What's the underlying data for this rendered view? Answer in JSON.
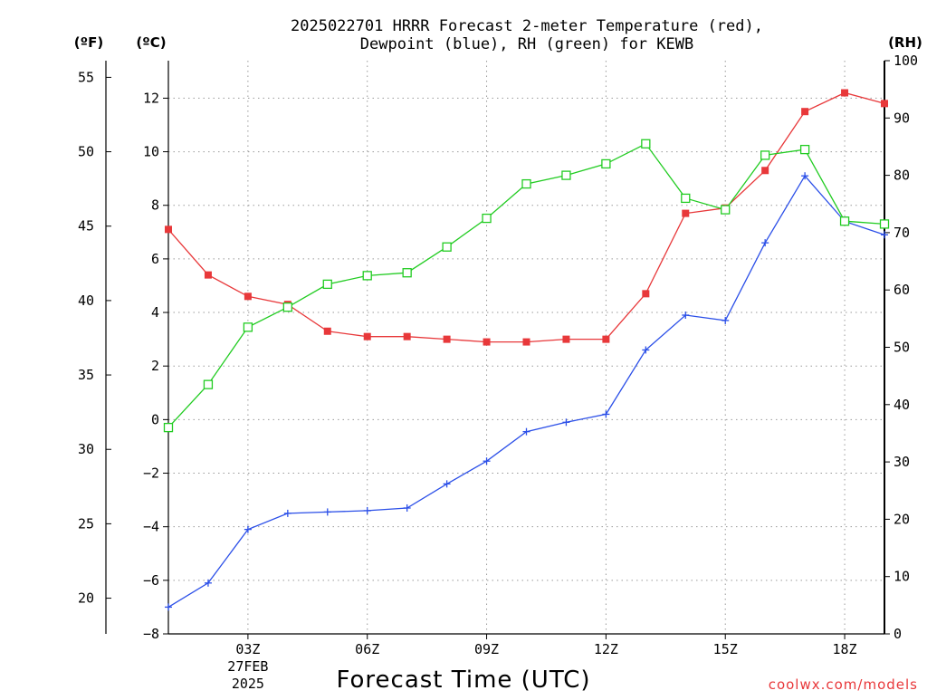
{
  "title_line1": "2025022701 HRRR Forecast 2-meter Temperature (red),",
  "title_line2": "Dewpoint (blue), RH (green) for KEWB",
  "credit": "coolwx.com/models",
  "chart_data": {
    "type": "line",
    "xlabel": "Forecast Time (UTC)",
    "x_hours": [
      1,
      2,
      3,
      4,
      5,
      6,
      7,
      8,
      9,
      10,
      11,
      12,
      13,
      14,
      15,
      16,
      17,
      18,
      19
    ],
    "x_range_hours": [
      1,
      19
    ],
    "x_ticks": [
      {
        "hour": 3,
        "label": "03Z",
        "sub1": "27FEB",
        "sub2": "2025"
      },
      {
        "hour": 6,
        "label": "06Z"
      },
      {
        "hour": 9,
        "label": "09Z"
      },
      {
        "hour": 12,
        "label": "12Z"
      },
      {
        "hour": 15,
        "label": "15Z"
      },
      {
        "hour": 18,
        "label": "18Z"
      }
    ],
    "left_axis_c": {
      "unit": "(ºC)",
      "ylim": [
        -8,
        13.4
      ],
      "ticks": [
        -8,
        -6,
        -4,
        -2,
        0,
        2,
        4,
        6,
        8,
        10,
        12
      ]
    },
    "left_axis_f": {
      "unit": "(ºF)",
      "ylim": [
        17.6,
        56.12
      ],
      "ticks": [
        20,
        25,
        30,
        35,
        40,
        45,
        50,
        55
      ]
    },
    "right_axis_rh": {
      "unit": "(RH)",
      "ylim": [
        0,
        100
      ],
      "ticks": [
        0,
        10,
        20,
        30,
        40,
        50,
        60,
        70,
        80,
        90,
        100
      ]
    },
    "grid": true,
    "series": [
      {
        "key": "temperature",
        "axis": "c",
        "color": "#e8383a",
        "marker": "filled-square",
        "values": [
          7.1,
          5.4,
          4.6,
          4.3,
          3.3,
          3.1,
          3.1,
          3.0,
          2.9,
          2.9,
          3.0,
          3.0,
          4.7,
          7.7,
          7.9,
          9.3,
          11.5,
          12.2,
          11.8
        ]
      },
      {
        "key": "dewpoint",
        "axis": "c",
        "color": "#2b4fe8",
        "marker": "plus",
        "values": [
          -7.0,
          -6.1,
          -4.1,
          -3.5,
          -3.45,
          -3.4,
          -3.3,
          -2.4,
          -1.55,
          -0.45,
          -0.1,
          0.2,
          2.6,
          3.9,
          3.7,
          6.6,
          9.1,
          7.4,
          6.9
        ]
      },
      {
        "key": "rh",
        "axis": "rh",
        "color": "#22cc22",
        "marker": "open-square",
        "values": [
          36,
          43.5,
          53.5,
          57,
          61,
          62.5,
          63,
          67.5,
          72.5,
          78.5,
          80,
          82,
          85.5,
          76,
          74,
          83.5,
          84.5,
          72,
          71.5
        ]
      }
    ]
  }
}
